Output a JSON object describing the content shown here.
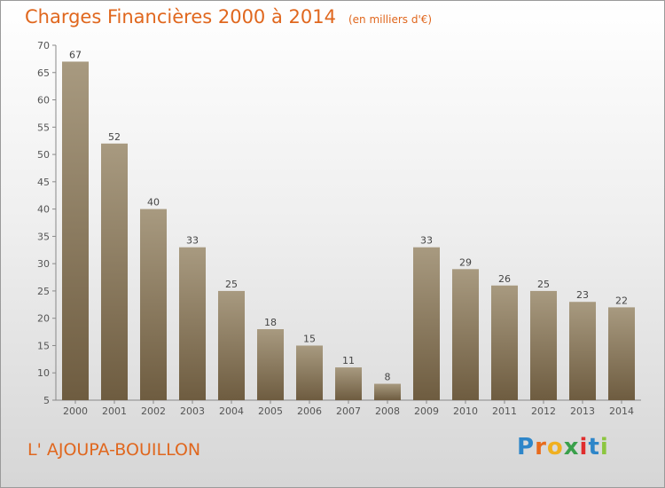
{
  "title": "Charges Financières 2000 à 2014",
  "unit": "(en milliers d'€)",
  "commune": "L' AJOUPA-BOUILLON",
  "logo": {
    "letters": [
      "P",
      "r",
      "o",
      "x",
      "i",
      "t",
      "i"
    ],
    "colors": [
      "#2e86c9",
      "#e86b1c",
      "#f0b020",
      "#3aa04b",
      "#e02d2d",
      "#2e86c9",
      "#8cc63f"
    ]
  },
  "colors": {
    "bar_top": "#a89a80",
    "bar_bottom": "#6e5c40",
    "text_accent": "#e0671e"
  },
  "chart_data": {
    "type": "bar",
    "categories": [
      "2000",
      "2001",
      "2002",
      "2003",
      "2004",
      "2005",
      "2006",
      "2007",
      "2008",
      "2009",
      "2010",
      "2011",
      "2012",
      "2013",
      "2014"
    ],
    "values": [
      67,
      52,
      40,
      33,
      25,
      18,
      15,
      11,
      8,
      33,
      29,
      26,
      25,
      23,
      22
    ],
    "ylim": [
      5,
      70
    ],
    "yticks": [
      5,
      10,
      15,
      20,
      25,
      30,
      35,
      40,
      45,
      50,
      55,
      60,
      65,
      70
    ],
    "grid": false,
    "data_labels": true
  }
}
